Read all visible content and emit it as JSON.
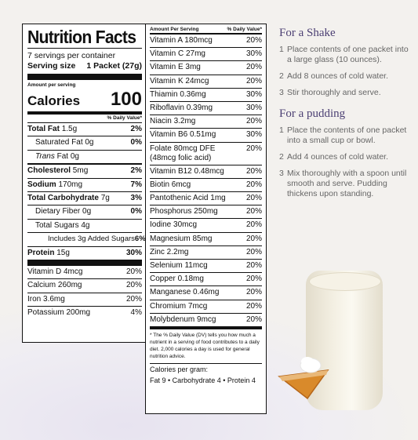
{
  "label": {
    "title": "Nutrition Facts",
    "servings_per_container": "7 servings per container",
    "serving_size_label": "Serving size",
    "serving_size_value": "1 Packet (27g)",
    "amount_per_serving": "Amount per serving",
    "calories_label": "Calories",
    "calories_value": "100",
    "dv_header": "% Daily Value*",
    "nutrients": [
      {
        "name": "Total Fat",
        "amount": "1.5g",
        "dv": "2%"
      },
      {
        "name": "Saturated Fat",
        "amount": "0g",
        "dv": "0%"
      },
      {
        "name": "Trans",
        "amount": "Fat 0g",
        "dv": ""
      },
      {
        "name": "Cholesterol",
        "amount": "5mg",
        "dv": "2%"
      },
      {
        "name": "Sodium",
        "amount": "170mg",
        "dv": "7%"
      },
      {
        "name": "Total Carbohydrate",
        "amount": "7g",
        "dv": "3%"
      },
      {
        "name": "Dietary Fiber",
        "amount": "0g",
        "dv": "0%"
      },
      {
        "name": "Total Sugars",
        "amount": "4g",
        "dv": ""
      },
      {
        "name": "Includes 3g Added Sugars",
        "amount": "",
        "dv": "6%"
      },
      {
        "name": "Protein",
        "amount": "15g",
        "dv": "30%"
      }
    ],
    "minerals": [
      {
        "name": "Vitamin D 4mcg",
        "dv": "20%"
      },
      {
        "name": "Calcium 260mg",
        "dv": "20%"
      },
      {
        "name": "Iron 3.6mg",
        "dv": "20%"
      },
      {
        "name": "Potassium 200mg",
        "dv": "4%"
      }
    ]
  },
  "middle": {
    "header_left": "Amount Per Serving",
    "header_right": "% Daily Value*",
    "vitamins": [
      {
        "name": "Vitamin A 180mcg",
        "dv": "20%"
      },
      {
        "name": "Vitamin C 27mg",
        "dv": "30%"
      },
      {
        "name": "Vitamin E 3mg",
        "dv": "20%"
      },
      {
        "name": "Vitamin K 24mcg",
        "dv": "20%"
      },
      {
        "name": "Thiamin 0.36mg",
        "dv": "30%"
      },
      {
        "name": "Riboflavin 0.39mg",
        "dv": "30%"
      },
      {
        "name": "Niacin 3.2mg",
        "dv": "20%"
      },
      {
        "name": "Vitamin B6 0.51mg",
        "dv": "30%"
      },
      {
        "name": "Folate 80mcg DFE (48mcg folic acid)",
        "dv": "20%"
      },
      {
        "name": "Vitamin B12 0.48mcg",
        "dv": "20%"
      },
      {
        "name": "Biotin 6mcg",
        "dv": "20%"
      },
      {
        "name": "Pantothenic Acid 1mg",
        "dv": "20%"
      },
      {
        "name": "Phosphorus 250mg",
        "dv": "20%"
      },
      {
        "name": "Iodine 30mcg",
        "dv": "20%"
      },
      {
        "name": "Magnesium 85mg",
        "dv": "20%"
      },
      {
        "name": "Zinc 2.2mg",
        "dv": "20%"
      },
      {
        "name": "Selenium 11mcg",
        "dv": "20%"
      },
      {
        "name": "Copper 0.18mg",
        "dv": "20%"
      },
      {
        "name": "Manganese 0.46mg",
        "dv": "20%"
      },
      {
        "name": "Chromium 7mcg",
        "dv": "20%"
      },
      {
        "name": "Molybdenum 9mcg",
        "dv": "20%"
      }
    ],
    "footnote": "* The % Daily Value (DV) tells you how much a nutrient in a serving of food contributes to a daily diet. 2,000 calories a day is used for general nutrition advice.",
    "calories_per_gram_label": "Calories per gram:",
    "calories_per_gram": "Fat 9 • Carbohydrate 4 • Protein 4"
  },
  "shake": {
    "heading": "For a Shake",
    "steps": [
      {
        "n": "1",
        "text": "Place contents of one packet into a large glass (10 ounces)."
      },
      {
        "n": "2",
        "text": "Add 8 ounces of cold water."
      },
      {
        "n": "3",
        "text": "Stir thoroughly and serve."
      }
    ]
  },
  "pudding": {
    "heading": "For a pudding",
    "steps": [
      {
        "n": "1",
        "text": "Place the contents of one packet into a small cup or bowl."
      },
      {
        "n": "2",
        "text": "Add 4 ounces of cold water."
      },
      {
        "n": "3",
        "text": "Mix thoroughly with a spoon until smooth and serve. Pudding thickens upon standing."
      }
    ]
  }
}
